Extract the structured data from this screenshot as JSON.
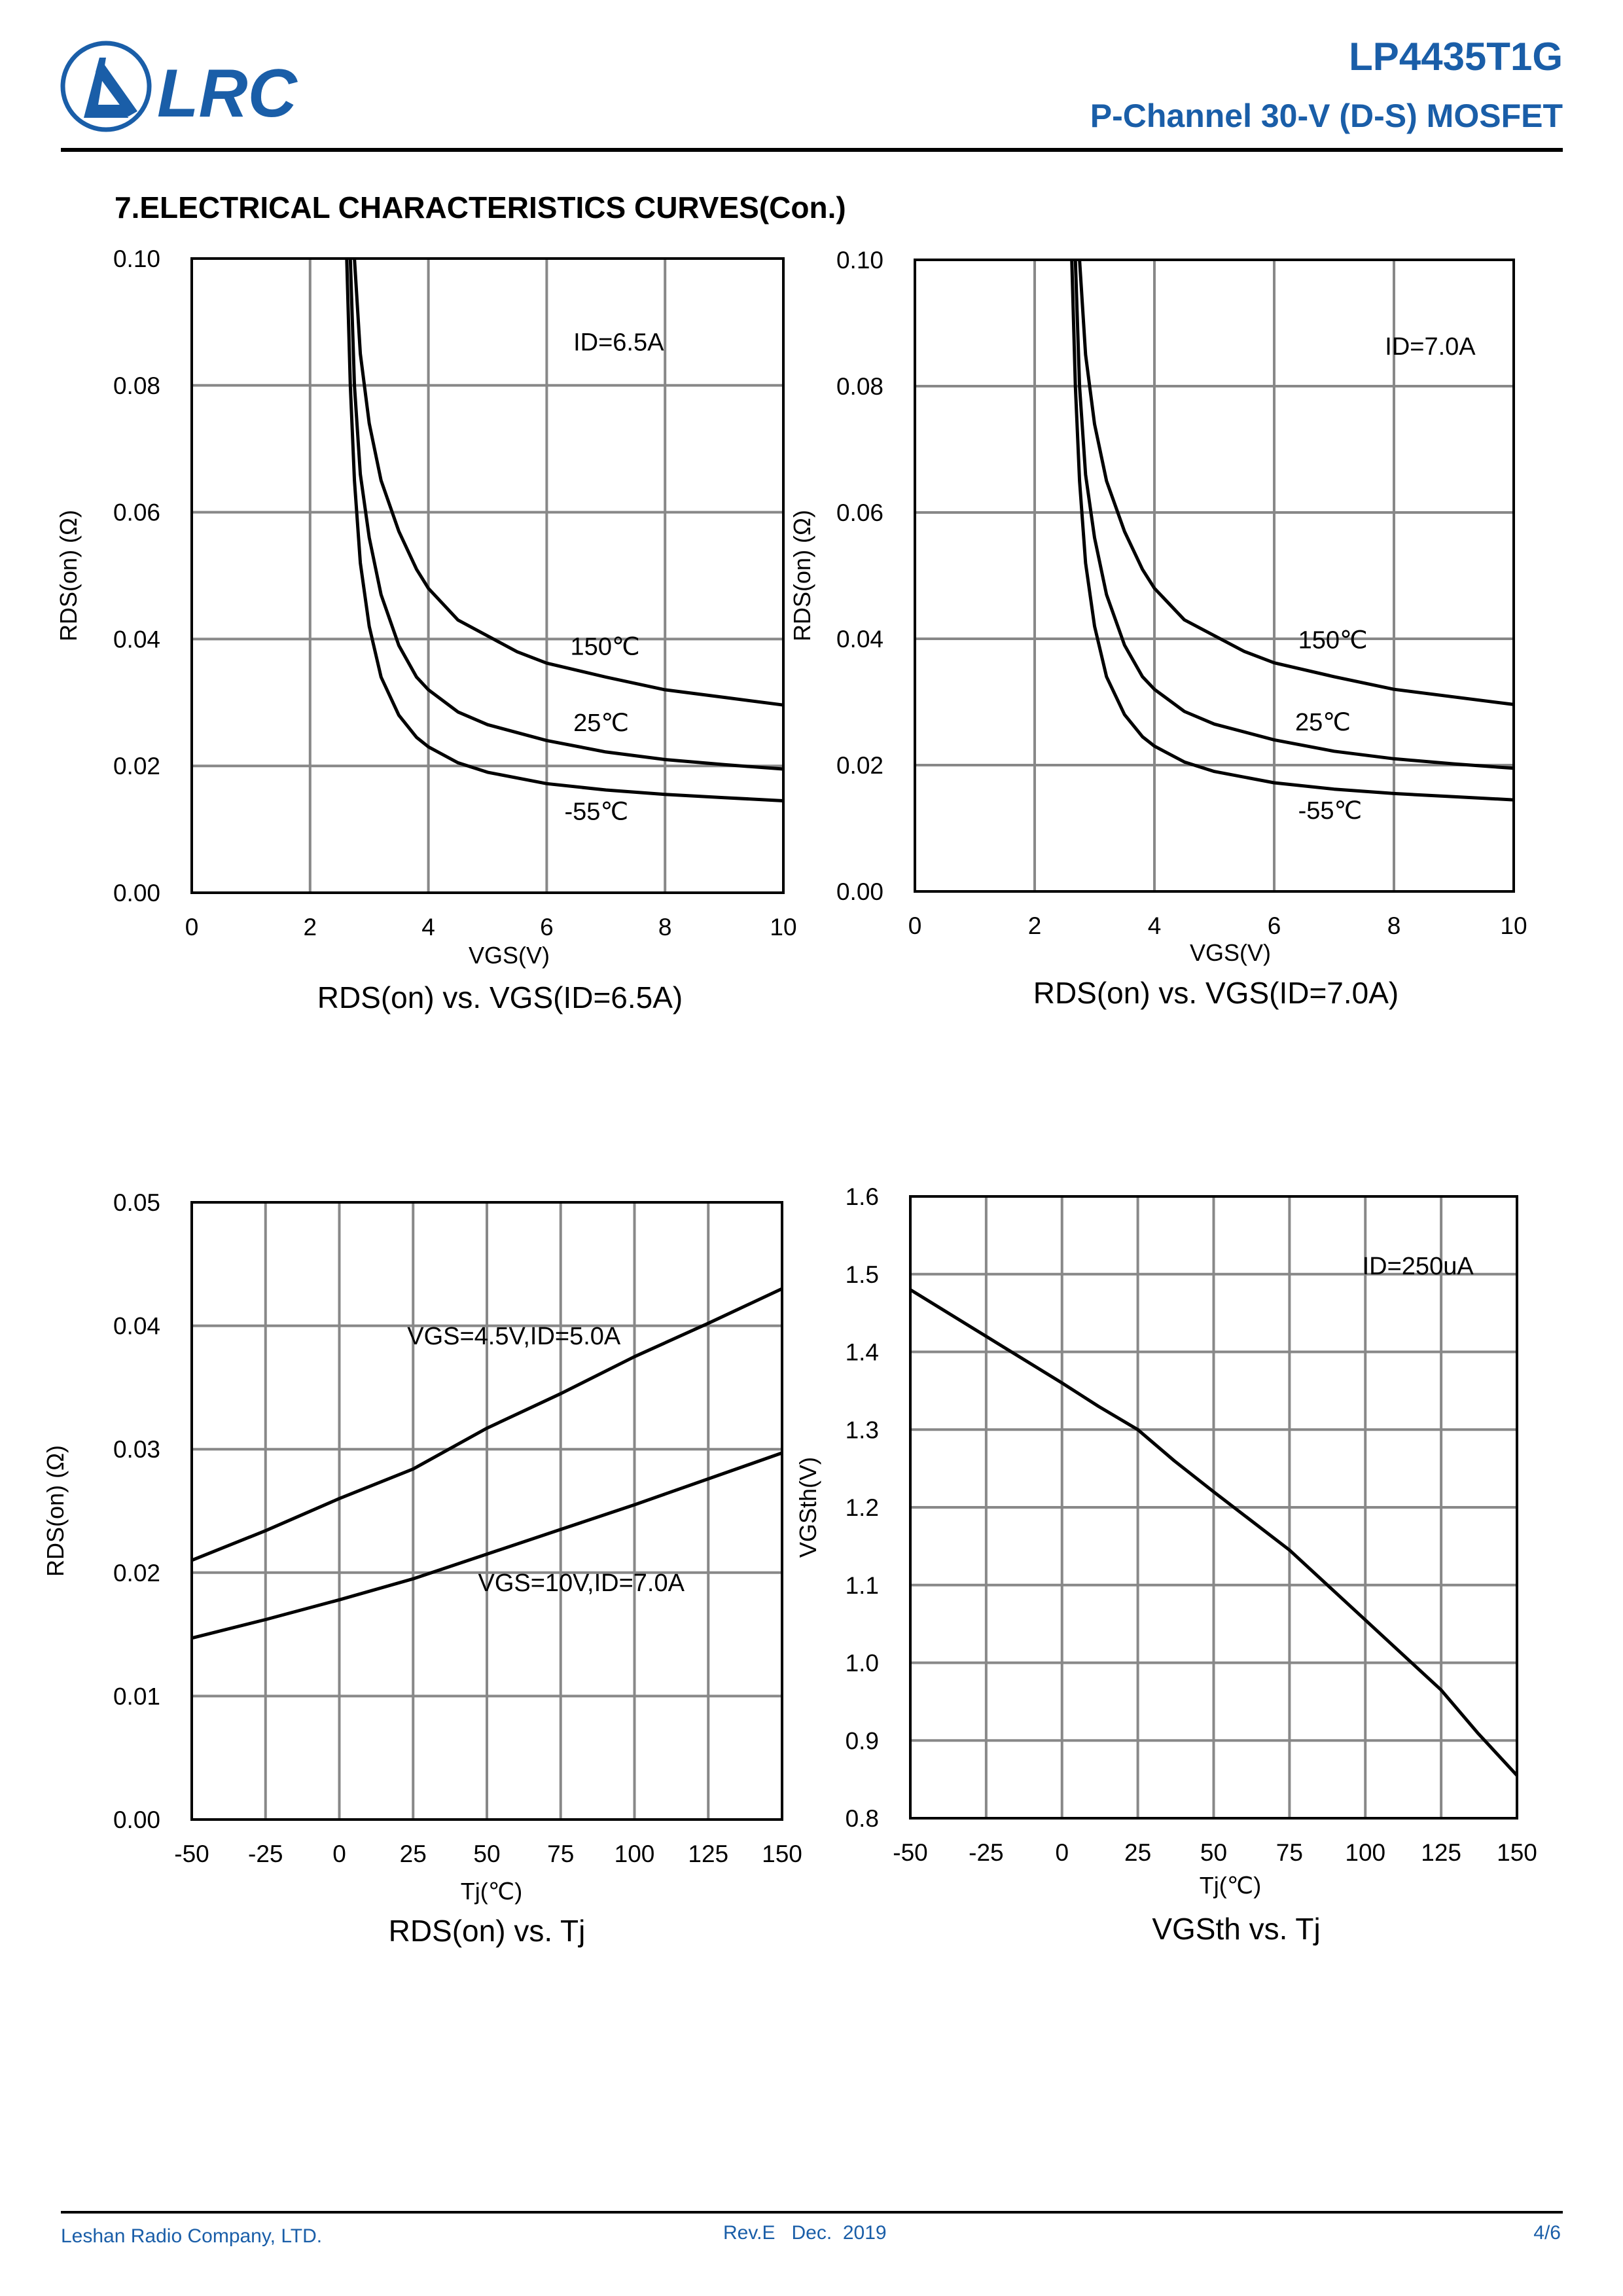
{
  "header": {
    "logo_text": "LRC",
    "part_number": "LP4435T1G",
    "subtitle": "P-Channel 30-V (D-S) MOSFET",
    "brand_color": "#1a5ea8"
  },
  "section_title": "7.ELECTRICAL CHARACTERISTICS CURVES(Con.)",
  "footer": {
    "company": "Leshan Radio Company, LTD.",
    "revision": "Rev.E   Dec.  2019",
    "page": "4/6"
  },
  "chart_data": [
    {
      "type": "line",
      "title": "RDS(on) vs. VGS(ID=6.5A)",
      "xlabel": "VGS(V)",
      "ylabel": "RDS(on) (Ω)",
      "xlim": [
        0,
        10
      ],
      "ylim": [
        0,
        0.1
      ],
      "xticks": [
        "0",
        "2",
        "4",
        "6",
        "8",
        "10"
      ],
      "yticks": [
        "0.00",
        "0.02",
        "0.04",
        "0.06",
        "0.08",
        "0.10"
      ],
      "grid": true,
      "annotations": [
        {
          "text": "ID=6.5A",
          "x": 6.45,
          "y": 0.0855
        },
        {
          "text": "150℃",
          "x": 6.4,
          "y": 0.0375
        },
        {
          "text": "25℃",
          "x": 6.45,
          "y": 0.0255
        },
        {
          "text": "-55℃",
          "x": 6.3,
          "y": 0.0115
        }
      ],
      "series": [
        {
          "name": "150℃",
          "x": [
            2.75,
            2.85,
            3,
            3.2,
            3.5,
            3.8,
            4,
            4.5,
            5,
            5.5,
            6,
            7,
            8,
            9,
            10
          ],
          "y": [
            0.1,
            0.085,
            0.074,
            0.065,
            0.057,
            0.051,
            0.048,
            0.043,
            0.0405,
            0.038,
            0.0362,
            0.034,
            0.032,
            0.0308,
            0.0296
          ]
        },
        {
          "name": "25℃",
          "x": [
            2.68,
            2.75,
            2.85,
            3,
            3.2,
            3.5,
            3.8,
            4,
            4.5,
            5,
            6,
            7,
            8,
            9,
            10
          ],
          "y": [
            0.1,
            0.08,
            0.066,
            0.056,
            0.047,
            0.039,
            0.034,
            0.032,
            0.0285,
            0.0265,
            0.024,
            0.0222,
            0.021,
            0.0202,
            0.0195
          ]
        },
        {
          "name": "-55℃",
          "x": [
            2.62,
            2.68,
            2.75,
            2.85,
            3,
            3.2,
            3.5,
            3.8,
            4,
            4.5,
            5,
            6,
            7,
            8,
            9,
            10
          ],
          "y": [
            0.1,
            0.08,
            0.065,
            0.052,
            0.042,
            0.034,
            0.028,
            0.0245,
            0.023,
            0.0205,
            0.019,
            0.0172,
            0.0162,
            0.0155,
            0.015,
            0.0145
          ]
        }
      ]
    },
    {
      "type": "line",
      "title": "RDS(on) vs. VGS(ID=7.0A)",
      "xlabel": "VGS(V)",
      "ylabel": "RDS(on) (Ω)",
      "xlim": [
        0,
        10
      ],
      "ylim": [
        0,
        0.1
      ],
      "xticks": [
        "0",
        "2",
        "4",
        "6",
        "8",
        "10"
      ],
      "yticks": [
        "0.00",
        "0.02",
        "0.04",
        "0.06",
        "0.08",
        "0.10"
      ],
      "grid": true,
      "annotations": [
        {
          "text": "ID=7.0A",
          "x": 7.85,
          "y": 0.085
        },
        {
          "text": "150℃",
          "x": 6.4,
          "y": 0.0385
        },
        {
          "text": "25℃",
          "x": 6.35,
          "y": 0.0255
        },
        {
          "text": "-55℃",
          "x": 6.4,
          "y": 0.0115
        }
      ],
      "series": [
        {
          "name": "150℃",
          "x": [
            2.75,
            2.85,
            3,
            3.2,
            3.5,
            3.8,
            4,
            4.5,
            5,
            5.5,
            6,
            7,
            8,
            9,
            10
          ],
          "y": [
            0.1,
            0.085,
            0.074,
            0.065,
            0.057,
            0.051,
            0.048,
            0.043,
            0.0405,
            0.038,
            0.0362,
            0.034,
            0.032,
            0.0308,
            0.0296
          ]
        },
        {
          "name": "25℃",
          "x": [
            2.68,
            2.75,
            2.85,
            3,
            3.2,
            3.5,
            3.8,
            4,
            4.5,
            5,
            6,
            7,
            8,
            9,
            10
          ],
          "y": [
            0.1,
            0.08,
            0.066,
            0.056,
            0.047,
            0.039,
            0.034,
            0.032,
            0.0285,
            0.0265,
            0.024,
            0.0222,
            0.021,
            0.0202,
            0.0195
          ]
        },
        {
          "name": "-55℃",
          "x": [
            2.62,
            2.68,
            2.75,
            2.85,
            3,
            3.2,
            3.5,
            3.8,
            4,
            4.5,
            5,
            6,
            7,
            8,
            9,
            10
          ],
          "y": [
            0.1,
            0.08,
            0.065,
            0.052,
            0.042,
            0.034,
            0.028,
            0.0245,
            0.023,
            0.0205,
            0.019,
            0.0172,
            0.0162,
            0.0155,
            0.015,
            0.0145
          ]
        }
      ]
    },
    {
      "type": "line",
      "title": "RDS(on) vs. Tj",
      "xlabel": "Tj(℃)",
      "ylabel": "RDS(on) (Ω)",
      "xlim": [
        -50,
        150
      ],
      "ylim": [
        0,
        0.05
      ],
      "xticks": [
        "-50",
        "-25",
        "0",
        "25",
        "50",
        "75",
        "100",
        "125",
        "150"
      ],
      "yticks": [
        "0.00",
        "0.01",
        "0.02",
        "0.03",
        "0.04",
        "0.05"
      ],
      "grid": true,
      "annotations": [
        {
          "text": "VGS=4.5V,ID=5.0A",
          "x": 23,
          "y": 0.0385
        },
        {
          "text": "VGS=10V,ID=7.0A",
          "x": 47,
          "y": 0.0185
        }
      ],
      "series": [
        {
          "name": "VGS=4.5V,ID=5.0A",
          "x": [
            -50,
            -25,
            0,
            25,
            50,
            75,
            100,
            125,
            150
          ],
          "y": [
            0.021,
            0.0234,
            0.026,
            0.0284,
            0.0317,
            0.0345,
            0.0375,
            0.0402,
            0.043
          ]
        },
        {
          "name": "VGS=10V,ID=7.0A",
          "x": [
            -50,
            -25,
            0,
            25,
            50,
            75,
            100,
            125,
            150
          ],
          "y": [
            0.0147,
            0.0162,
            0.0178,
            0.0195,
            0.0215,
            0.0235,
            0.0255,
            0.0276,
            0.0297
          ]
        }
      ]
    },
    {
      "type": "line",
      "title": "VGSth vs. Tj",
      "xlabel": "Tj(℃)",
      "ylabel": "VGSth(V)",
      "xlim": [
        -50,
        150
      ],
      "ylim": [
        0.8,
        1.6
      ],
      "xticks": [
        "-50",
        "-25",
        "0",
        "25",
        "50",
        "75",
        "100",
        "125",
        "150"
      ],
      "yticks": [
        "0.8",
        "0.9",
        "1.0",
        "1.1",
        "1.2",
        "1.3",
        "1.4",
        "1.5",
        "1.6"
      ],
      "grid": true,
      "annotations": [
        {
          "text": "ID=250uA",
          "x": 99,
          "y": 1.5
        }
      ],
      "series": [
        {
          "name": "ID=250uA",
          "x": [
            -50,
            -25,
            0,
            12,
            25,
            37,
            50,
            75,
            100,
            125,
            137,
            150
          ],
          "y": [
            1.48,
            1.42,
            1.36,
            1.33,
            1.3,
            1.26,
            1.22,
            1.145,
            1.055,
            0.965,
            0.91,
            0.855
          ]
        }
      ]
    }
  ]
}
